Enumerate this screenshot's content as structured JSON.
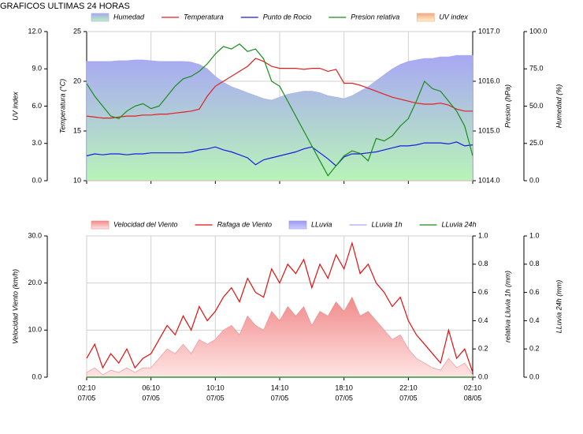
{
  "chart_data": [
    {
      "type": "line",
      "title": "GRAFICOS ULTIMAS 24 HORAS",
      "grid": true,
      "x": [
        "07/05 02:10",
        "07/05 02:40",
        "07/05 03:10",
        "07/05 03:40",
        "07/05 04:10",
        "07/05 04:40",
        "07/05 05:10",
        "07/05 05:40",
        "07/05 06:10",
        "07/05 06:40",
        "07/05 07:10",
        "07/05 07:40",
        "07/05 08:10",
        "07/05 08:40",
        "07/05 09:10",
        "07/05 09:40",
        "07/05 10:10",
        "07/05 10:40",
        "07/05 11:10",
        "07/05 11:40",
        "07/05 12:10",
        "07/05 12:40",
        "07/05 13:10",
        "07/05 13:40",
        "07/05 14:10",
        "07/05 14:40",
        "07/05 15:10",
        "07/05 15:40",
        "07/05 16:10",
        "07/05 16:40",
        "07/05 17:10",
        "07/05 17:40",
        "07/05 18:10",
        "07/05 18:40",
        "07/05 19:10",
        "07/05 19:40",
        "07/05 20:10",
        "07/05 20:40",
        "07/05 21:10",
        "07/05 21:40",
        "07/05 22:10",
        "07/05 22:40",
        "07/05 23:10",
        "07/05 23:40",
        "08/05 00:10",
        "08/05 00:40",
        "08/05 01:10",
        "08/05 01:40",
        "08/05 02:10"
      ],
      "xticks": [
        "07/05 02:10",
        "07/05 06:10",
        "07/05 10:10",
        "07/05 14:10",
        "07/05 18:10",
        "07/05 22:10",
        "08/05 02:10"
      ],
      "ylabel": "Temperatura (°C)",
      "ylim": [
        10,
        25
      ],
      "yticks": [
        10,
        15,
        20,
        25
      ],
      "y2label": "Presion (hPa)",
      "y2lim": [
        1014,
        1017
      ],
      "y2ticks": [
        {
          "value": 1014,
          "label": "1014.0"
        },
        {
          "value": 1015,
          "label": "1015.0"
        },
        {
          "value": 1016,
          "label": "1016.0"
        },
        {
          "value": 1017,
          "label": "1017.0"
        }
      ],
      "y3label": "Humedad (%)",
      "y3lim": [
        0,
        100
      ],
      "y3ticks": [
        {
          "value": 0,
          "label": "0.0"
        },
        {
          "value": 25,
          "label": "25.0"
        },
        {
          "value": 50,
          "label": "50.0"
        },
        {
          "value": 75,
          "label": "75.0"
        },
        {
          "value": 100,
          "label": "100.0"
        }
      ],
      "y4label": "UV index",
      "y4lim": [
        0,
        12
      ],
      "y4ticks": [
        {
          "value": 0,
          "label": "0.0"
        },
        {
          "value": 3,
          "label": "3.0"
        },
        {
          "value": 6,
          "label": "6.0"
        },
        {
          "value": 9,
          "label": "9.0"
        },
        {
          "value": 12,
          "label": "12.0"
        }
      ],
      "series": [
        {
          "name": "Humedad",
          "axis": "y3",
          "fill": true,
          "color": "#a8a8f4",
          "color2": "#b8f4b8",
          "values": [
            80,
            80,
            80,
            80,
            80.5,
            80.5,
            81,
            81,
            80.5,
            80,
            80,
            80,
            80,
            79.5,
            78,
            75,
            70,
            66,
            63,
            61,
            59,
            57,
            55,
            54,
            56,
            58,
            59,
            60,
            60,
            59,
            57,
            56,
            55,
            57,
            60,
            63,
            67,
            71,
            75,
            78,
            80,
            81,
            82,
            82,
            83,
            83,
            84,
            84,
            84
          ]
        },
        {
          "name": "Temperatura",
          "axis": "y",
          "fill": false,
          "color": "#e02020",
          "values": [
            16.5,
            16.4,
            16.3,
            16.3,
            16.4,
            16.5,
            16.5,
            16.6,
            16.6,
            16.7,
            16.7,
            16.8,
            16.9,
            17.0,
            17.2,
            18.5,
            19.5,
            20.0,
            20.5,
            21.0,
            21.5,
            22.3,
            22.0,
            21.5,
            21.3,
            21.3,
            21.3,
            21.2,
            21.3,
            21.3,
            21.0,
            21.2,
            19.8,
            19.8,
            19.6,
            19.3,
            19.0,
            18.7,
            18.4,
            18.2,
            18.0,
            17.8,
            17.7,
            17.7,
            17.8,
            17.6,
            17.2,
            17.0,
            17.0
          ]
        },
        {
          "name": "Punto de Rocio",
          "axis": "y",
          "fill": false,
          "color": "#1a1ae0",
          "values": [
            12.5,
            12.7,
            12.6,
            12.7,
            12.7,
            12.6,
            12.7,
            12.7,
            12.8,
            12.8,
            12.8,
            12.8,
            12.8,
            12.9,
            13.1,
            13.2,
            13.4,
            13.1,
            12.9,
            12.6,
            12.3,
            11.6,
            12.1,
            12.3,
            12.5,
            12.7,
            12.9,
            13.2,
            13.4,
            12.8,
            12.2,
            11.5,
            12.4,
            12.7,
            12.7,
            12.8,
            12.9,
            13.1,
            13.3,
            13.5,
            13.5,
            13.6,
            13.8,
            13.8,
            13.8,
            13.7,
            13.9,
            13.5,
            13.6
          ]
        },
        {
          "name": "Presion relativa",
          "axis": "y2",
          "fill": false,
          "color": "#1a8c1a",
          "values": [
            1015.95,
            1015.7,
            1015.5,
            1015.3,
            1015.25,
            1015.4,
            1015.5,
            1015.55,
            1015.45,
            1015.5,
            1015.7,
            1015.9,
            1016.05,
            1016.1,
            1016.2,
            1016.35,
            1016.55,
            1016.7,
            1016.65,
            1016.75,
            1016.6,
            1016.65,
            1016.45,
            1016.0,
            1015.9,
            1015.6,
            1015.3,
            1015.0,
            1014.7,
            1014.4,
            1014.1,
            1014.3,
            1014.5,
            1014.6,
            1014.55,
            1014.4,
            1014.85,
            1014.8,
            1014.9,
            1015.1,
            1015.25,
            1015.6,
            1016.0,
            1015.85,
            1015.8,
            1015.6,
            1015.4,
            1015.1,
            1014.5
          ]
        },
        {
          "name": "UV index",
          "axis": "y4",
          "fill": true,
          "color": "#f4a880",
          "color2": "#fff4cc",
          "values": [
            0,
            0,
            0,
            0,
            0,
            0,
            0,
            0,
            0,
            0,
            0,
            0,
            0,
            0,
            0,
            0,
            0,
            0,
            0,
            0,
            0,
            0,
            0,
            0,
            0,
            0,
            0,
            0,
            0,
            0,
            0,
            0,
            0,
            0,
            0,
            0,
            0,
            0,
            0,
            0,
            0,
            0,
            0,
            0,
            0,
            0,
            0,
            0,
            0
          ]
        }
      ]
    },
    {
      "type": "line",
      "grid": true,
      "x": [
        "07/05 02:10",
        "07/05 02:40",
        "07/05 03:10",
        "07/05 03:40",
        "07/05 04:10",
        "07/05 04:40",
        "07/05 05:10",
        "07/05 05:40",
        "07/05 06:10",
        "07/05 06:40",
        "07/05 07:10",
        "07/05 07:40",
        "07/05 08:10",
        "07/05 08:40",
        "07/05 09:10",
        "07/05 09:40",
        "07/05 10:10",
        "07/05 10:40",
        "07/05 11:10",
        "07/05 11:40",
        "07/05 12:10",
        "07/05 12:40",
        "07/05 13:10",
        "07/05 13:40",
        "07/05 14:10",
        "07/05 14:40",
        "07/05 15:10",
        "07/05 15:40",
        "07/05 16:10",
        "07/05 16:40",
        "07/05 17:10",
        "07/05 17:40",
        "07/05 18:10",
        "07/05 18:40",
        "07/05 19:10",
        "07/05 19:40",
        "07/05 20:10",
        "07/05 20:40",
        "07/05 21:10",
        "07/05 21:40",
        "07/05 22:10",
        "07/05 22:40",
        "07/05 23:10",
        "07/05 23:40",
        "08/05 00:10",
        "08/05 00:40",
        "08/05 01:10",
        "08/05 01:40",
        "08/05 02:10"
      ],
      "xticks": [
        {
          "value": "07/05 02:10",
          "label": [
            "02:10",
            "07/05"
          ]
        },
        {
          "value": "07/05 06:10",
          "label": [
            "06:10",
            "07/05"
          ]
        },
        {
          "value": "07/05 10:10",
          "label": [
            "10:10",
            "07/05"
          ]
        },
        {
          "value": "07/05 14:10",
          "label": [
            "14:10",
            "07/05"
          ]
        },
        {
          "value": "07/05 18:10",
          "label": [
            "18:10",
            "07/05"
          ]
        },
        {
          "value": "07/05 22:10",
          "label": [
            "22:10",
            "07/05"
          ]
        },
        {
          "value": "08/05 02:10",
          "label": [
            "02:10",
            "08/05"
          ]
        }
      ],
      "ylabel": "Velocidad Viento (km/h)",
      "ylim": [
        0,
        30
      ],
      "yticks": [
        {
          "value": 0,
          "label": "0.0"
        },
        {
          "value": 10,
          "label": "10.0"
        },
        {
          "value": 20,
          "label": "20.0"
        },
        {
          "value": 30,
          "label": "30.0"
        }
      ],
      "y2label": "relativa Lluvia 1h (mm)",
      "y2lim": [
        0,
        1
      ],
      "y2ticks": [
        {
          "value": 0,
          "label": "0.0"
        },
        {
          "value": 0.2,
          "label": "0.2"
        },
        {
          "value": 0.4,
          "label": "0.4"
        },
        {
          "value": 0.6,
          "label": "0.6"
        },
        {
          "value": 0.8,
          "label": "0.8"
        },
        {
          "value": 1,
          "label": "1.0"
        }
      ],
      "y3label": "LLuvia 24h (mm)",
      "y3lim": [
        0,
        1
      ],
      "y3ticks": [
        {
          "value": 0,
          "label": "0.0"
        },
        {
          "value": 0.2,
          "label": "0.2"
        },
        {
          "value": 0.4,
          "label": "0.4"
        },
        {
          "value": 0.6,
          "label": "0.6"
        },
        {
          "value": 0.8,
          "label": "0.8"
        },
        {
          "value": 1,
          "label": "1.0"
        }
      ],
      "series": [
        {
          "name": "Velocidad del Viento",
          "axis": "y",
          "fill": true,
          "color": "#f08a8a",
          "color2": "#ffe4e4",
          "values": [
            1,
            2,
            0.5,
            1.5,
            1,
            2,
            1,
            2,
            2,
            4,
            6,
            5,
            7,
            5,
            8,
            7,
            8,
            10,
            11,
            9,
            13,
            11,
            10,
            14,
            12,
            15,
            13,
            15,
            11,
            14,
            13,
            16,
            14,
            17,
            13,
            14,
            12,
            10,
            8,
            9,
            6,
            4,
            3,
            2,
            1.5,
            4,
            2,
            3,
            0.5
          ]
        },
        {
          "name": "Rafaga de Viento",
          "axis": "y",
          "fill": false,
          "color": "#e01010",
          "values": [
            4,
            7,
            2,
            5,
            3,
            6,
            2,
            4,
            5,
            8,
            11,
            9,
            13,
            10,
            15,
            12,
            14,
            17,
            19,
            16,
            21,
            18,
            17,
            23,
            20,
            24,
            22,
            25,
            19,
            24,
            21,
            26,
            23,
            28.5,
            22,
            24,
            20,
            18,
            15,
            17,
            12,
            9,
            7,
            5,
            3,
            10,
            4,
            6,
            1
          ]
        },
        {
          "name": "LLuvia",
          "axis": "y2",
          "fill": true,
          "color": "#9999ee",
          "color2": "#ccccff",
          "values": [
            0,
            0,
            0,
            0,
            0,
            0,
            0,
            0,
            0,
            0,
            0,
            0,
            0,
            0,
            0,
            0,
            0,
            0,
            0,
            0,
            0,
            0,
            0,
            0,
            0,
            0,
            0,
            0,
            0,
            0,
            0,
            0,
            0,
            0,
            0,
            0,
            0,
            0,
            0,
            0,
            0,
            0,
            0,
            0,
            0,
            0,
            0,
            0,
            0
          ]
        },
        {
          "name": "LLuvia 1h",
          "axis": "y2",
          "fill": false,
          "color": "#aaaaee",
          "values": [
            0,
            0,
            0,
            0,
            0,
            0,
            0,
            0,
            0,
            0,
            0,
            0,
            0,
            0,
            0,
            0,
            0,
            0,
            0,
            0,
            0,
            0,
            0,
            0,
            0,
            0,
            0,
            0,
            0,
            0,
            0,
            0,
            0,
            0,
            0,
            0,
            0,
            0,
            0,
            0,
            0,
            0,
            0,
            0,
            0,
            0,
            0,
            0,
            0
          ]
        },
        {
          "name": "LLuvia 24h",
          "axis": "y3",
          "fill": false,
          "color": "#1a8c1a",
          "values": [
            0,
            0,
            0,
            0,
            0,
            0,
            0,
            0,
            0,
            0,
            0,
            0,
            0,
            0,
            0,
            0,
            0,
            0,
            0,
            0,
            0,
            0,
            0,
            0,
            0,
            0,
            0,
            0,
            0,
            0,
            0,
            0,
            0,
            0,
            0,
            0,
            0,
            0,
            0,
            0,
            0,
            0,
            0,
            0,
            0,
            0,
            0,
            0,
            0
          ]
        }
      ]
    }
  ]
}
